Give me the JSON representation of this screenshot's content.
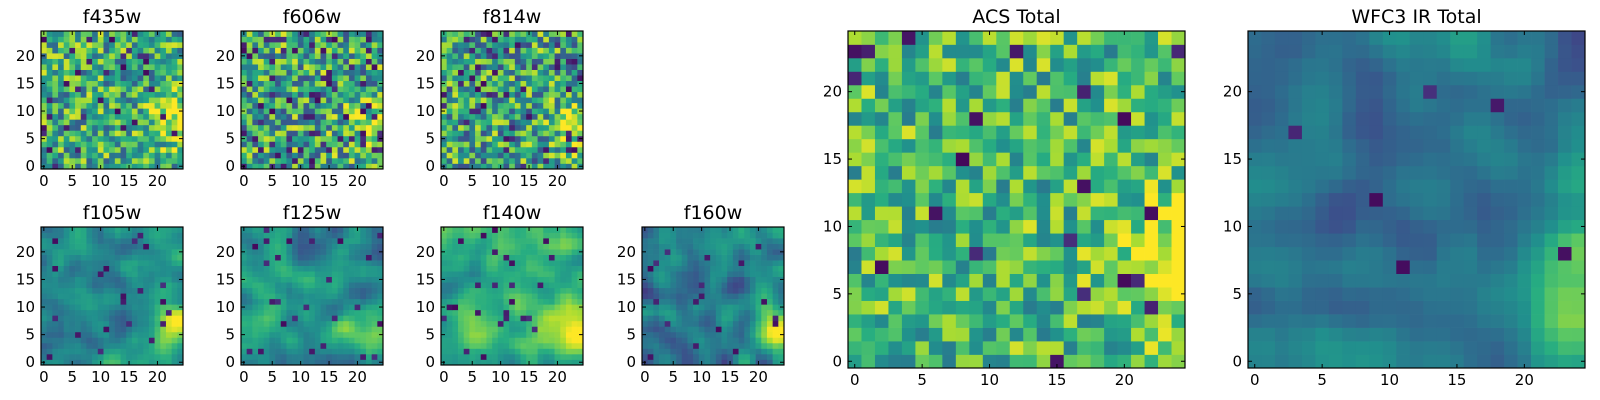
{
  "figure": {
    "background": "#ffffff",
    "colormap": "viridis"
  },
  "chart_data": [
    {
      "id": "f435w",
      "type": "heatmap",
      "title": "f435w",
      "shape": [
        25,
        25
      ],
      "xlim": [
        -0.5,
        24.5
      ],
      "ylim": [
        -0.5,
        24.5
      ],
      "xticks": [
        0,
        5,
        10,
        15,
        20
      ],
      "yticks": [
        0,
        5,
        10,
        15,
        20
      ],
      "xticklabels": [
        "0",
        "5",
        "10",
        "15",
        "20"
      ],
      "yticklabels": [
        "0",
        "5",
        "10",
        "15",
        "20"
      ],
      "pattern": "noise",
      "texture": 0.55,
      "seed": 11,
      "noise_level": 0.55,
      "base_level": 0.62,
      "hot_spot": [
        24,
        8
      ],
      "dark_fraction": 0.06
    },
    {
      "id": "f606w",
      "type": "heatmap",
      "title": "f606w",
      "shape": [
        25,
        25
      ],
      "xlim": [
        -0.5,
        24.5
      ],
      "ylim": [
        -0.5,
        24.5
      ],
      "xticks": [
        0,
        5,
        10,
        15,
        20
      ],
      "yticks": [
        0,
        5,
        10,
        15,
        20
      ],
      "xticklabels": [
        "0",
        "5",
        "10",
        "15",
        "20"
      ],
      "yticklabels": [
        "0",
        "5",
        "10",
        "15",
        "20"
      ],
      "pattern": "noise",
      "seed": 23,
      "noise_level": 0.6,
      "base_level": 0.6,
      "hot_spot": [
        24,
        7
      ],
      "dark_fraction": 0.1
    },
    {
      "id": "f814w",
      "type": "heatmap",
      "title": "f814w",
      "shape": [
        25,
        25
      ],
      "xlim": [
        -0.5,
        24.5
      ],
      "ylim": [
        -0.5,
        24.5
      ],
      "xticks": [
        0,
        5,
        10,
        15,
        20
      ],
      "yticks": [
        0,
        5,
        10,
        15,
        20
      ],
      "xticklabels": [
        "0",
        "5",
        "10",
        "15",
        "20"
      ],
      "yticklabels": [
        "0",
        "5",
        "10",
        "15",
        "20"
      ],
      "pattern": "noise",
      "seed": 37,
      "noise_level": 0.6,
      "base_level": 0.58,
      "hot_spot": [
        24,
        7
      ],
      "dark_fraction": 0.08
    },
    {
      "id": "f105w",
      "type": "heatmap",
      "title": "f105w",
      "shape": [
        25,
        25
      ],
      "xlim": [
        -0.5,
        24.5
      ],
      "ylim": [
        -0.5,
        24.5
      ],
      "xticks": [
        0,
        5,
        10,
        15,
        20
      ],
      "yticks": [
        0,
        5,
        10,
        15,
        20
      ],
      "xticklabels": [
        "0",
        "5",
        "10",
        "15",
        "20"
      ],
      "yticklabels": [
        "0",
        "5",
        "10",
        "15",
        "20"
      ],
      "pattern": "smooth",
      "seed": 41,
      "noise_level": 0.35,
      "base_level": 0.5,
      "hot_spot": [
        23,
        7
      ],
      "dark_fraction": 0.04
    },
    {
      "id": "f125w",
      "type": "heatmap",
      "title": "f125w",
      "shape": [
        25,
        25
      ],
      "xlim": [
        -0.5,
        24.5
      ],
      "ylim": [
        -0.5,
        24.5
      ],
      "xticks": [
        0,
        5,
        10,
        15,
        20
      ],
      "yticks": [
        0,
        5,
        10,
        15,
        20
      ],
      "xticklabels": [
        "0",
        "5",
        "10",
        "15",
        "20"
      ],
      "yticklabels": [
        "0",
        "5",
        "10",
        "15",
        "20"
      ],
      "pattern": "smooth",
      "seed": 53,
      "noise_level": 0.4,
      "base_level": 0.5,
      "hot_spot": [
        23,
        5
      ],
      "dark_fraction": 0.05
    },
    {
      "id": "f140w",
      "type": "heatmap",
      "title": "f140w",
      "shape": [
        25,
        25
      ],
      "xlim": [
        -0.5,
        24.5
      ],
      "ylim": [
        -0.5,
        24.5
      ],
      "xticks": [
        0,
        5,
        10,
        15,
        20
      ],
      "yticks": [
        0,
        5,
        10,
        15,
        20
      ],
      "xticklabels": [
        "0",
        "5",
        "10",
        "15",
        "20"
      ],
      "yticklabels": [
        "0",
        "5",
        "10",
        "15",
        "20"
      ],
      "pattern": "smooth",
      "seed": 67,
      "noise_level": 0.35,
      "base_level": 0.62,
      "hot_spot": [
        23,
        6
      ],
      "dark_fraction": 0.03
    },
    {
      "id": "f160w",
      "type": "heatmap",
      "title": "f160w",
      "shape": [
        25,
        25
      ],
      "xlim": [
        -0.5,
        24.5
      ],
      "ylim": [
        -0.5,
        24.5
      ],
      "xticks": [
        0,
        5,
        10,
        15,
        20
      ],
      "yticks": [
        0,
        5,
        10,
        15,
        20
      ],
      "xticklabels": [
        "0",
        "5",
        "10",
        "15",
        "20"
      ],
      "yticklabels": [
        "0",
        "5",
        "10",
        "15",
        "20"
      ],
      "pattern": "smooth",
      "seed": 79,
      "noise_level": 0.4,
      "base_level": 0.42,
      "hot_spot": [
        23,
        6
      ],
      "dark_fraction": 0.04
    },
    {
      "id": "acs-total",
      "type": "heatmap",
      "title": "ACS Total",
      "shape": [
        25,
        25
      ],
      "xlim": [
        -0.5,
        24.5
      ],
      "ylim": [
        -0.5,
        24.5
      ],
      "xticks": [
        0,
        5,
        10,
        15,
        20
      ],
      "yticks": [
        0,
        5,
        10,
        15,
        20
      ],
      "xticklabels": [
        "0",
        "5",
        "10",
        "15",
        "20"
      ],
      "yticklabels": [
        "0",
        "5",
        "10",
        "15",
        "20"
      ],
      "pattern": "noise",
      "seed": 91,
      "noise_level": 0.45,
      "base_level": 0.68,
      "hot_spot": [
        24,
        7
      ],
      "dark_fraction": 0.04
    },
    {
      "id": "wfc3-ir-total",
      "type": "heatmap",
      "title": "WFC3 IR Total",
      "shape": [
        25,
        25
      ],
      "xlim": [
        -0.5,
        24.5
      ],
      "ylim": [
        -0.5,
        24.5
      ],
      "xticks": [
        0,
        5,
        10,
        15,
        20
      ],
      "yticks": [
        0,
        5,
        10,
        15,
        20
      ],
      "xticklabels": [
        "0",
        "5",
        "10",
        "15",
        "20"
      ],
      "yticklabels": [
        "0",
        "5",
        "10",
        "15",
        "20"
      ],
      "pattern": "smooth",
      "seed": 103,
      "noise_level": 0.3,
      "base_level": 0.4,
      "hot_spot": [
        24,
        6
      ],
      "dark_fraction": 0.02
    }
  ]
}
